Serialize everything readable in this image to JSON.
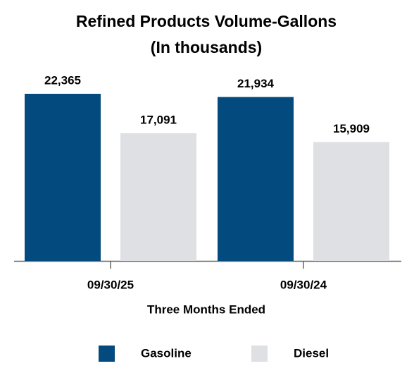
{
  "chart_data": {
    "type": "bar",
    "title": "Refined Products Volume-Gallons",
    "subtitle": "(In thousands)",
    "x_label": "Three Months Ended",
    "categories": [
      "09/30/25",
      "09/30/24"
    ],
    "series": [
      {
        "name": "Gasoline",
        "color": "#034a7e",
        "values": [
          22365,
          21934
        ],
        "value_labels": [
          "22,365",
          "21,934"
        ]
      },
      {
        "name": "Diesel",
        "color": "#dfe0e4",
        "values": [
          17091,
          15909
        ],
        "value_labels": [
          "17,091",
          "15,909"
        ]
      }
    ]
  }
}
